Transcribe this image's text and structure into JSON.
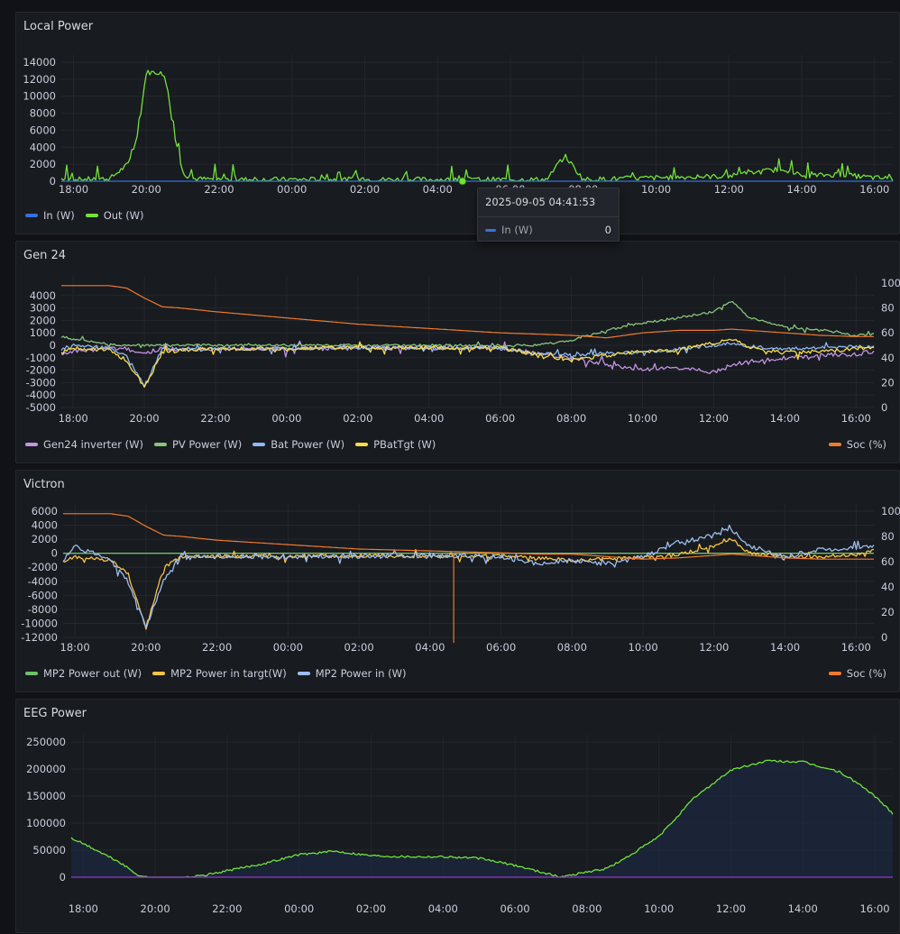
{
  "colors": {
    "in": "#3871dc",
    "out": "#73e23a",
    "gen24_inverter": "#c394e4",
    "pv_power": "#86c67a",
    "bat_power": "#8eb8f8",
    "pbattgt": "#f7dc49",
    "soc": "#f07a2d",
    "mp2_out": "#73bf69",
    "mp2_targt": "#f7c445",
    "mp2_in": "#9dbdf0",
    "eeg": "#6fe23a",
    "eeg2": "#8f3bd0"
  },
  "panels": [
    {
      "title": "Local Power",
      "legend": [
        "In (W)",
        "Out (W)"
      ],
      "x_ticks": [
        "18:00",
        "20:00",
        "22:00",
        "00:00",
        "02:00",
        "04:00",
        "06:00",
        "08:00",
        "10:00",
        "12:00",
        "14:00",
        "16:00"
      ],
      "y_ticks": [
        "14000",
        "12000",
        "10000",
        "8000",
        "6000",
        "4000",
        "2000",
        "0"
      ]
    },
    {
      "title": "Gen 24",
      "legend": [
        "Gen24 inverter (W)",
        "PV Power (W)",
        "Bat Power (W)",
        "PBatTgt (W)"
      ],
      "legend_right": "Soc (%)",
      "x_ticks": [
        "18:00",
        "20:00",
        "22:00",
        "00:00",
        "02:00",
        "04:00",
        "06:00",
        "08:00",
        "10:00",
        "12:00",
        "14:00",
        "16:00"
      ],
      "y_ticks": [
        "4000",
        "3000",
        "2000",
        "1000",
        "0",
        "-1000",
        "-2000",
        "-3000",
        "-4000",
        "-5000"
      ],
      "y2_ticks": [
        "100",
        "80",
        "60",
        "40",
        "20",
        "0"
      ]
    },
    {
      "title": "Victron",
      "legend": [
        "MP2 Power out (W)",
        "MP2 Power in targt(W)",
        "MP2 Power in (W)"
      ],
      "legend_right": "Soc (%)",
      "x_ticks": [
        "18:00",
        "20:00",
        "22:00",
        "00:00",
        "02:00",
        "04:00",
        "06:00",
        "08:00",
        "10:00",
        "12:00",
        "14:00",
        "16:00"
      ],
      "y_ticks": [
        "6000",
        "4000",
        "2000",
        "0",
        "-2000",
        "-4000",
        "-6000",
        "-8000",
        "-10000",
        "-12000"
      ],
      "y2_ticks": [
        "100",
        "80",
        "60",
        "40",
        "20",
        "0"
      ]
    },
    {
      "title": "EEG Power",
      "x_ticks": [
        "18:00",
        "20:00",
        "22:00",
        "00:00",
        "02:00",
        "04:00",
        "06:00",
        "08:00",
        "10:00",
        "12:00",
        "14:00",
        "16:00"
      ],
      "y_ticks": [
        "250000",
        "200000",
        "150000",
        "100000",
        "50000",
        "0"
      ]
    }
  ],
  "tooltip": {
    "time": "2025-09-05 04:41:53",
    "series": "In (W)",
    "value": "0"
  },
  "chart_data": [
    {
      "type": "line",
      "title": "Local Power",
      "x": [
        "17:40",
        "18:00",
        "19:00",
        "19:30",
        "19:45",
        "20:00",
        "20:15",
        "20:30",
        "20:45",
        "21:00",
        "21:15",
        "22:00",
        "04:41",
        "07:00",
        "07:30",
        "08:00",
        "10:00",
        "12:00",
        "13:30",
        "14:00",
        "15:00",
        "16:00",
        "16:30"
      ],
      "ylim": [
        0,
        14000
      ],
      "series": [
        {
          "name": "In (W)",
          "values": [
            0,
            0,
            0,
            0,
            0,
            0,
            0,
            0,
            0,
            0,
            0,
            0,
            0,
            0,
            0,
            0,
            0,
            0,
            0,
            0,
            0,
            0,
            0
          ]
        },
        {
          "name": "Out (W)",
          "values": [
            300,
            200,
            300,
            2000,
            5000,
            12800,
            12800,
            12600,
            6000,
            1000,
            300,
            200,
            200,
            200,
            3000,
            200,
            400,
            600,
            1500,
            600,
            800,
            400,
            300
          ]
        }
      ]
    },
    {
      "type": "line",
      "title": "Gen 24",
      "x": [
        "17:40",
        "18:00",
        "19:00",
        "19:30",
        "20:00",
        "20:30",
        "21:00",
        "22:00",
        "02:00",
        "06:00",
        "07:00",
        "08:00",
        "09:00",
        "10:00",
        "11:00",
        "12:00",
        "12:30",
        "13:00",
        "14:00",
        "15:00",
        "16:00",
        "16:30"
      ],
      "ylim": [
        -5000,
        5000
      ],
      "y2lim": [
        0,
        100
      ],
      "series": [
        {
          "name": "Gen24 inverter (W)",
          "values": [
            -600,
            -500,
            -200,
            -300,
            -600,
            -300,
            -300,
            -300,
            -200,
            -200,
            -700,
            -1000,
            -1500,
            -2000,
            -1800,
            -2200,
            -1600,
            -1400,
            -1000,
            -800,
            -700,
            -500
          ]
        },
        {
          "name": "PV Power (W)",
          "values": [
            700,
            500,
            100,
            0,
            0,
            0,
            0,
            0,
            0,
            0,
            0,
            400,
            1200,
            1800,
            2200,
            2700,
            3600,
            2200,
            1500,
            1200,
            800,
            900
          ]
        },
        {
          "name": "Bat Power (W)",
          "values": [
            -300,
            0,
            -200,
            -800,
            -3300,
            -300,
            -300,
            -300,
            -200,
            -200,
            -600,
            -800,
            -600,
            -600,
            -300,
            0,
            200,
            -100,
            -300,
            -200,
            -100,
            -100
          ]
        },
        {
          "name": "PBatTgt (W)",
          "values": [
            -600,
            -200,
            -400,
            -1200,
            -3400,
            -600,
            -400,
            -300,
            -200,
            -200,
            -700,
            -1200,
            -800,
            -500,
            -400,
            200,
            500,
            -200,
            -600,
            -500,
            -300,
            -100
          ]
        },
        {
          "name": "Soc (%)",
          "values": [
            98,
            98,
            98,
            96,
            88,
            81,
            80,
            77,
            67,
            60,
            59,
            58,
            56,
            60,
            62,
            62,
            63,
            62,
            60,
            58,
            57,
            57
          ]
        }
      ]
    },
    {
      "type": "line",
      "title": "Victron",
      "x": [
        "17:40",
        "18:00",
        "19:00",
        "19:30",
        "20:00",
        "20:30",
        "21:00",
        "22:00",
        "02:00",
        "04:40",
        "06:00",
        "07:00",
        "08:00",
        "09:00",
        "10:00",
        "11:00",
        "12:00",
        "12:30",
        "13:00",
        "14:00",
        "15:00",
        "16:00",
        "16:30"
      ],
      "ylim": [
        -12000,
        6000
      ],
      "y2lim": [
        0,
        100
      ],
      "series": [
        {
          "name": "MP2 Power out (W)",
          "values": [
            0,
            0,
            0,
            0,
            0,
            0,
            0,
            0,
            0,
            0,
            0,
            0,
            0,
            0,
            0,
            0,
            0,
            0,
            0,
            0,
            0,
            0,
            0
          ]
        },
        {
          "name": "MP2 Power in targt(W)",
          "values": [
            -1200,
            -500,
            -1000,
            -3000,
            -10700,
            -2000,
            -500,
            -500,
            -400,
            -400,
            -400,
            -600,
            -1000,
            -800,
            -600,
            -200,
            1000,
            2000,
            0,
            -500,
            -500,
            -200,
            500
          ]
        },
        {
          "name": "MP2 Power in (W)",
          "values": [
            -1000,
            1000,
            -1000,
            -4000,
            -10500,
            -4000,
            -600,
            -500,
            -400,
            -400,
            -500,
            -1500,
            -1000,
            -1500,
            -500,
            1500,
            2500,
            3500,
            1000,
            -500,
            500,
            800,
            1000
          ]
        },
        {
          "name": "Soc (%)",
          "values": [
            98,
            98,
            98,
            96,
            88,
            81,
            80,
            77,
            70,
            68,
            67,
            66,
            66,
            64,
            62,
            63,
            65,
            66,
            65,
            63,
            62,
            62,
            62
          ]
        }
      ]
    },
    {
      "type": "area",
      "title": "EEG Power",
      "x": [
        "17:40",
        "18:00",
        "18:30",
        "19:00",
        "19:30",
        "20:00",
        "20:30",
        "21:00",
        "21:30",
        "22:00",
        "23:00",
        "00:00",
        "01:00",
        "02:00",
        "03:00",
        "04:00",
        "05:00",
        "06:00",
        "07:00",
        "07:15",
        "08:00",
        "08:30",
        "09:00",
        "10:00",
        "11:00",
        "12:00",
        "13:00",
        "14:00",
        "15:00",
        "15:30",
        "16:00",
        "16:30"
      ],
      "ylim": [
        -10000,
        250000
      ],
      "series": [
        {
          "name": "",
          "values": [
            72000,
            62000,
            45000,
            28000,
            5000,
            -5000,
            -3000,
            0,
            5000,
            12000,
            25000,
            42000,
            48000,
            40000,
            38000,
            38000,
            35000,
            22000,
            5000,
            0,
            10000,
            15000,
            32000,
            75000,
            148000,
            198000,
            215000,
            213000,
            195000,
            175000,
            150000,
            118000
          ]
        },
        {
          "name": "",
          "values": [
            0,
            0,
            0,
            0,
            -3000,
            -12000,
            -5000,
            0,
            0,
            0,
            0,
            0,
            0,
            0,
            0,
            0,
            0,
            0,
            0,
            0,
            0,
            0,
            0,
            0,
            0,
            0,
            0,
            0,
            0,
            0,
            0,
            0
          ]
        }
      ]
    }
  ]
}
